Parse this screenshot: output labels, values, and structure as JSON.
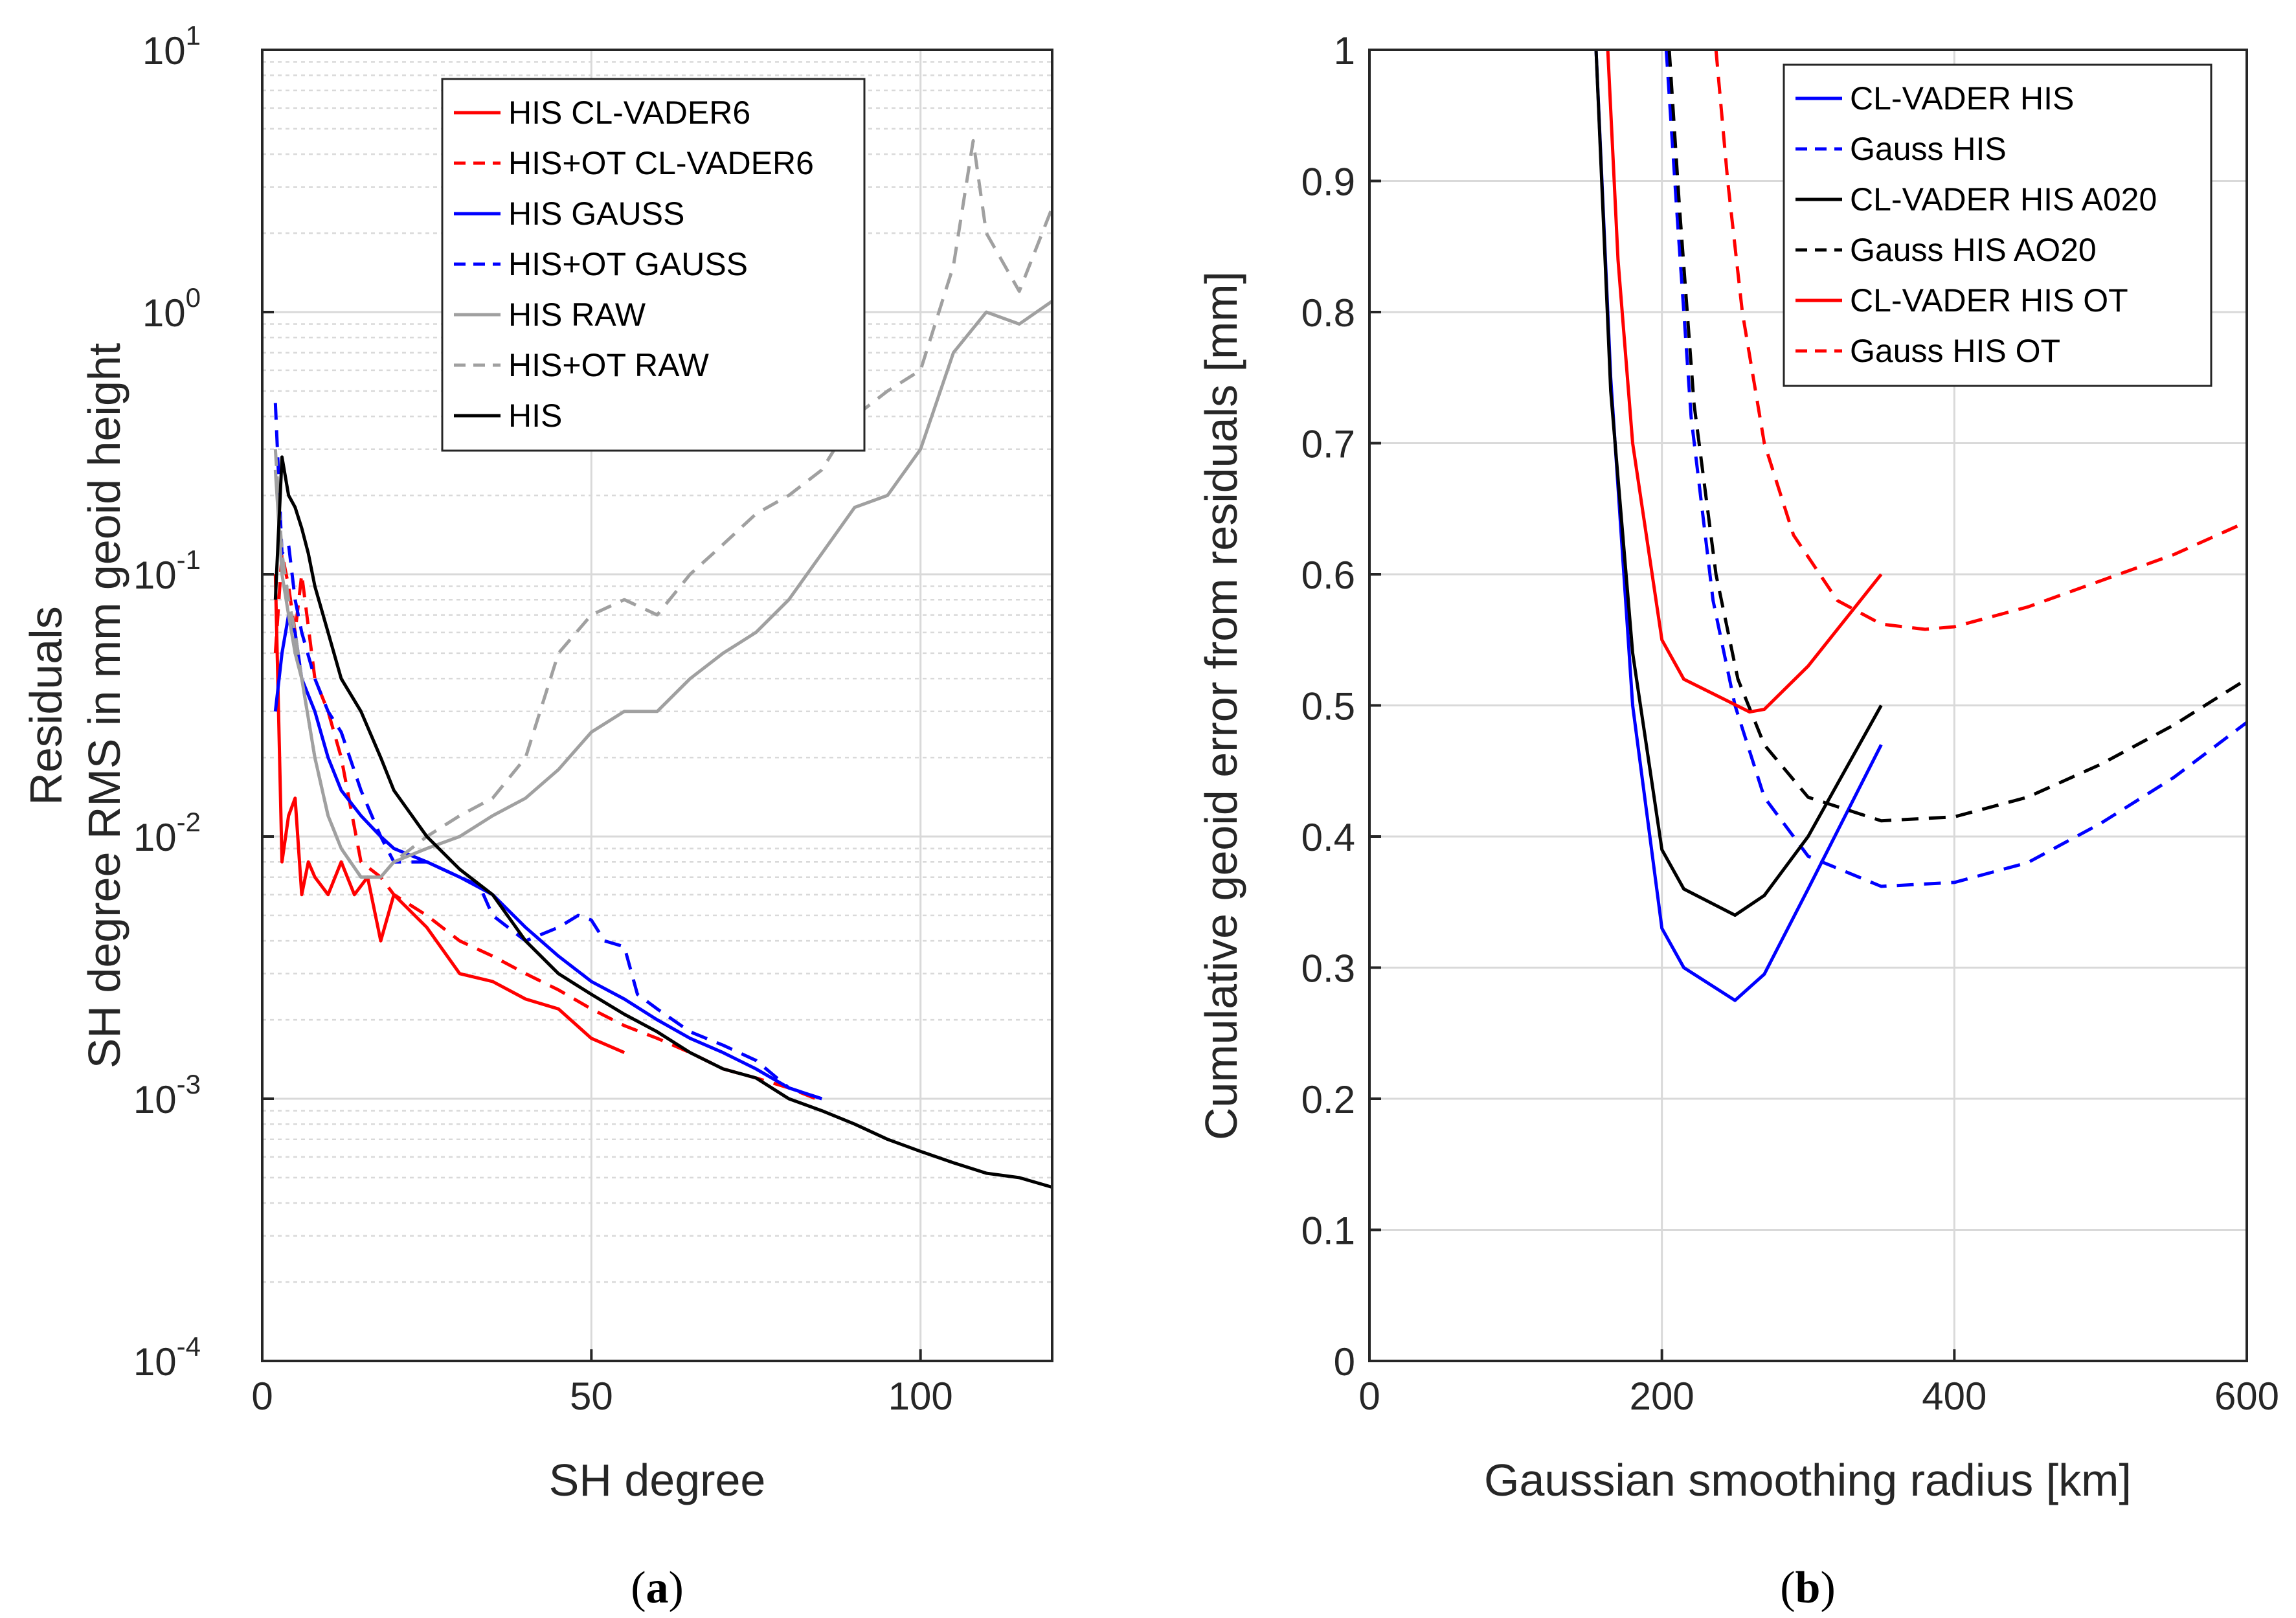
{
  "colors": {
    "red": "#ff0000",
    "blue": "#0000ff",
    "gray": "#a0a0a0",
    "black": "#000000",
    "grid": "#d9d9d9"
  },
  "chart_data": [
    {
      "id": "a",
      "type": "line",
      "caption_open": "(",
      "caption_letter": "a",
      "caption_close": ")",
      "xlabel": "SH degree",
      "ylabel_line1": "Residuals",
      "ylabel_line2": "SH degree RMS in mm geoid height",
      "xlim": [
        0,
        120
      ],
      "ylim": [
        0.0001,
        10
      ],
      "yscale": "log",
      "grid": "on (major and minor on y)",
      "legend_position": "top-center",
      "xticks": [
        "0",
        "50",
        "100"
      ],
      "yticks": [
        {
          "base": "10",
          "exp": "-4"
        },
        {
          "base": "10",
          "exp": "-3"
        },
        {
          "base": "10",
          "exp": "-2"
        },
        {
          "base": "10",
          "exp": "-1"
        },
        {
          "base": "10",
          "exp": "0"
        },
        {
          "base": "10",
          "exp": "1"
        }
      ],
      "series": [
        {
          "name": "HIS CL-VADER6",
          "color": "red",
          "dash": "solid",
          "x": [
            2,
            3,
            4,
            5,
            6,
            7,
            8,
            10,
            12,
            14,
            16,
            18,
            20,
            25,
            30,
            35,
            40,
            45,
            50,
            55
          ],
          "y": [
            0.1,
            0.008,
            0.012,
            0.014,
            0.006,
            0.008,
            0.007,
            0.006,
            0.008,
            0.006,
            0.007,
            0.004,
            0.006,
            0.0045,
            0.003,
            0.0028,
            0.0024,
            0.0022,
            0.0017,
            0.0015
          ]
        },
        {
          "name": "HIS+OT CL-VADER6",
          "color": "red",
          "dash": "dashed",
          "x": [
            2,
            3,
            4,
            5,
            6,
            8,
            10,
            12,
            15,
            18,
            20,
            25,
            30,
            35,
            40,
            45,
            50,
            55,
            60,
            65,
            70,
            75,
            80,
            85
          ],
          "y": [
            0.05,
            0.12,
            0.09,
            0.06,
            0.1,
            0.04,
            0.03,
            0.02,
            0.008,
            0.007,
            0.006,
            0.005,
            0.004,
            0.0035,
            0.003,
            0.0026,
            0.0022,
            0.0019,
            0.0017,
            0.0015,
            0.0013,
            0.0012,
            0.0011,
            0.00098
          ]
        },
        {
          "name": "HIS GAUSS",
          "color": "blue",
          "dash": "solid",
          "x": [
            2,
            3,
            4,
            5,
            6,
            8,
            10,
            12,
            15,
            18,
            20,
            25,
            30,
            35,
            40,
            45,
            50,
            55,
            60,
            65,
            70,
            75,
            80,
            85
          ],
          "y": [
            0.03,
            0.05,
            0.07,
            0.06,
            0.04,
            0.03,
            0.02,
            0.015,
            0.012,
            0.01,
            0.009,
            0.008,
            0.007,
            0.006,
            0.0045,
            0.0035,
            0.0028,
            0.0024,
            0.002,
            0.0017,
            0.0015,
            0.0013,
            0.0011,
            0.001
          ]
        },
        {
          "name": "HIS+OT GAUSS",
          "color": "blue",
          "dash": "dashed",
          "x": [
            2,
            3,
            4,
            5,
            6,
            8,
            10,
            12,
            15,
            18,
            20,
            25,
            30,
            33,
            35,
            40,
            45,
            48,
            50,
            52,
            55,
            57,
            60,
            65,
            70,
            75,
            80,
            85
          ],
          "y": [
            0.45,
            0.12,
            0.13,
            0.08,
            0.06,
            0.04,
            0.03,
            0.025,
            0.015,
            0.01,
            0.008,
            0.008,
            0.007,
            0.0065,
            0.005,
            0.004,
            0.0045,
            0.005,
            0.0048,
            0.004,
            0.0038,
            0.0025,
            0.0022,
            0.0018,
            0.0016,
            0.0014,
            0.0011,
            0.001
          ]
        },
        {
          "name": "HIS RAW",
          "color": "gray",
          "dash": "solid",
          "x": [
            2,
            3,
            4,
            5,
            6,
            8,
            10,
            12,
            15,
            18,
            20,
            25,
            30,
            35,
            40,
            45,
            50,
            55,
            60,
            65,
            70,
            75,
            80,
            85,
            90,
            95,
            100,
            105,
            110,
            115,
            120
          ],
          "y": [
            0.25,
            0.1,
            0.07,
            0.05,
            0.04,
            0.02,
            0.012,
            0.009,
            0.007,
            0.007,
            0.008,
            0.009,
            0.01,
            0.012,
            0.014,
            0.018,
            0.025,
            0.03,
            0.03,
            0.04,
            0.05,
            0.06,
            0.08,
            0.12,
            0.18,
            0.2,
            0.3,
            0.7,
            1.0,
            0.9,
            1.1
          ]
        },
        {
          "name": "HIS+OT RAW",
          "color": "gray",
          "dash": "dashed",
          "x": [
            2,
            3,
            4,
            5,
            6,
            8,
            10,
            12,
            15,
            18,
            20,
            25,
            30,
            35,
            40,
            45,
            50,
            55,
            60,
            65,
            70,
            75,
            80,
            85,
            90,
            95,
            100,
            105,
            108,
            110,
            115,
            120
          ],
          "y": [
            0.3,
            0.12,
            0.08,
            0.06,
            0.04,
            0.02,
            0.012,
            0.009,
            0.007,
            0.007,
            0.008,
            0.01,
            0.012,
            0.014,
            0.02,
            0.05,
            0.07,
            0.08,
            0.07,
            0.1,
            0.13,
            0.17,
            0.2,
            0.25,
            0.4,
            0.5,
            0.6,
            1.5,
            4.5,
            2.0,
            1.2,
            2.5
          ]
        },
        {
          "name": "HIS",
          "color": "black",
          "dash": "solid",
          "x": [
            2,
            3,
            4,
            5,
            6,
            7,
            8,
            10,
            12,
            15,
            18,
            20,
            25,
            30,
            35,
            40,
            45,
            50,
            55,
            60,
            65,
            70,
            75,
            80,
            85,
            90,
            95,
            100,
            105,
            110,
            115,
            120
          ],
          "y": [
            0.08,
            0.28,
            0.2,
            0.18,
            0.15,
            0.12,
            0.09,
            0.06,
            0.04,
            0.03,
            0.02,
            0.015,
            0.01,
            0.0075,
            0.006,
            0.004,
            0.003,
            0.0025,
            0.0021,
            0.0018,
            0.0015,
            0.0013,
            0.0012,
            0.001,
            0.0009,
            0.0008,
            0.0007,
            0.00063,
            0.00057,
            0.00052,
            0.0005,
            0.00046
          ]
        }
      ]
    },
    {
      "id": "b",
      "type": "line",
      "caption_open": "(",
      "caption_letter": "b",
      "caption_close": ")",
      "xlabel": "Gaussian smoothing radius [km]",
      "ylabel": "Cumulative geoid error from residuals [mm]",
      "xlim": [
        0,
        600
      ],
      "ylim": [
        0,
        1
      ],
      "grid": "on",
      "legend_position": "top-right",
      "xticks": [
        "0",
        "200",
        "400",
        "600"
      ],
      "yticks": [
        "0",
        "0.1",
        "0.2",
        "0.3",
        "0.4",
        "0.5",
        "0.6",
        "0.7",
        "0.8",
        "0.9",
        "1"
      ],
      "series": [
        {
          "name": "CL-VADER HIS",
          "color": "blue",
          "dash": "solid",
          "x": [
            155,
            165,
            180,
            200,
            215,
            250,
            270,
            300,
            350
          ],
          "y": [
            1.0,
            0.75,
            0.5,
            0.33,
            0.3,
            0.275,
            0.295,
            0.36,
            0.47
          ]
        },
        {
          "name": "Gauss HIS",
          "color": "blue",
          "dash": "dashed",
          "x": [
            203,
            210,
            220,
            235,
            250,
            270,
            300,
            350,
            400,
            450,
            500,
            550,
            600
          ],
          "y": [
            1.0,
            0.88,
            0.72,
            0.58,
            0.5,
            0.43,
            0.385,
            0.362,
            0.365,
            0.38,
            0.41,
            0.445,
            0.487
          ]
        },
        {
          "name": "CL-VADER HIS A020",
          "color": "black",
          "dash": "solid",
          "x": [
            155,
            165,
            180,
            200,
            215,
            250,
            270,
            300,
            350
          ],
          "y": [
            1.0,
            0.74,
            0.54,
            0.39,
            0.36,
            0.34,
            0.355,
            0.4,
            0.5
          ]
        },
        {
          "name": "Gauss HIS AO20",
          "color": "black",
          "dash": "dashed",
          "x": [
            205,
            212,
            222,
            237,
            252,
            270,
            300,
            350,
            400,
            450,
            500,
            550,
            600
          ],
          "y": [
            1.0,
            0.88,
            0.73,
            0.6,
            0.52,
            0.47,
            0.43,
            0.412,
            0.415,
            0.43,
            0.455,
            0.485,
            0.52
          ]
        },
        {
          "name": "CL-VADER HIS OT",
          "color": "red",
          "dash": "solid",
          "x": [
            163,
            170,
            180,
            200,
            215,
            260,
            270,
            300,
            350
          ],
          "y": [
            1.0,
            0.84,
            0.7,
            0.55,
            0.52,
            0.495,
            0.497,
            0.53,
            0.6
          ]
        },
        {
          "name": "Gauss HIS OT",
          "color": "red",
          "dash": "dashed",
          "x": [
            237,
            245,
            255,
            270,
            290,
            320,
            350,
            380,
            400,
            450,
            500,
            550,
            600
          ],
          "y": [
            1.0,
            0.9,
            0.8,
            0.7,
            0.63,
            0.58,
            0.562,
            0.558,
            0.56,
            0.575,
            0.595,
            0.615,
            0.64
          ]
        }
      ]
    }
  ]
}
